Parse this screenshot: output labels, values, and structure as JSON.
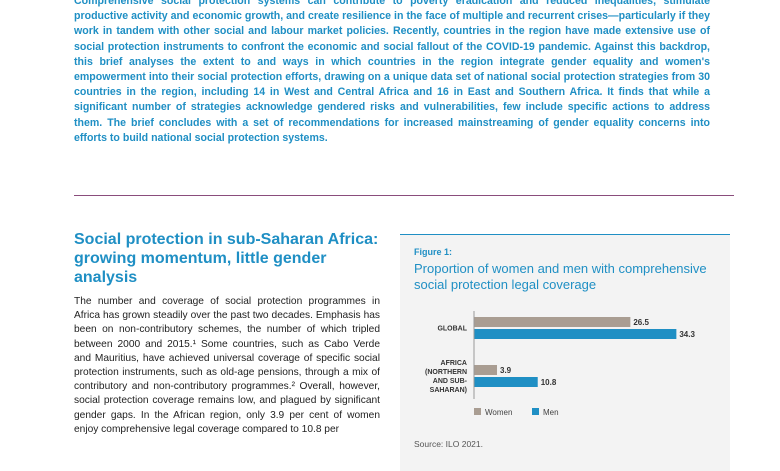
{
  "intro": {
    "text": "Comprehensive social protection systems can contribute to poverty eradication and reduced inequalities, stimulate productive activity and economic growth, and create resilience in the face of multiple and recurrent crises—particularly if they work in tandem with other social and labour market policies. Recently, countries in the region have made extensive use of social protection instruments to confront the economic and social fallout of the COVID-19 pandemic. Against this backdrop, this brief analyses the extent to and ways in which countries in the region integrate gender equality and women's empowerment into their social protection efforts, drawing on a unique data set of national social protection strategies from 30 countries in the region, including 14 in West and Central Africa and 16 in East and Southern Africa. It finds that while a significant number of strategies acknowledge gendered risks and vulnerabilities, few include specific actions to address them. The brief concludes with a set of recommendations for increased mainstreaming of gender equality concerns into efforts to build national social protection systems."
  },
  "section": {
    "title": "Social protection in sub-Saharan Africa: growing momentum, little gender analysis",
    "body": "The number and coverage of social protection programmes in Africa has grown steadily over the past two decades. Emphasis has been on non-contributory schemes, the number of which tripled between 2000 and 2015.¹ Some countries, such as Cabo Verde and Mauritius, have achieved universal coverage of specific social protection instruments, such as old-age pensions, through a mix of contributory and non-contributory programmes.² Overall, however, social protection coverage remains low, and plagued by significant gender gaps. In the African region, only 3.9 per cent of women enjoy comprehensive legal coverage compared to 10.8 per"
  },
  "figure": {
    "label": "Figure 1:",
    "title": "Proportion of women and men with comprehensive social protection legal coverage",
    "source": "Source: ILO 2021."
  },
  "chart_data": {
    "type": "bar",
    "orientation": "horizontal",
    "categories": [
      "GLOBAL",
      "AFRICA\n(NORTHERN\nAND SUB-\nSAHARAN)"
    ],
    "series": [
      {
        "name": "Women",
        "values": [
          26.5,
          3.9
        ],
        "color": "#a99d92"
      },
      {
        "name": "Men",
        "values": [
          34.3,
          10.8
        ],
        "color": "#1f8fc4"
      }
    ],
    "legend": "bottom"
  }
}
